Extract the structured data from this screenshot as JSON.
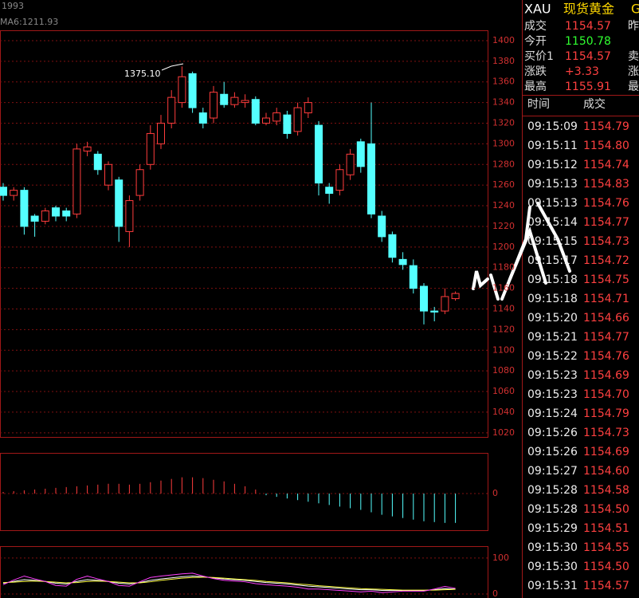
{
  "chart_data": [
    {
      "type": "candlestick",
      "title": "1993",
      "subtitle": "MA6:1211.93",
      "annotation": "1375.10",
      "open": [
        1258,
        1250,
        1255,
        1230,
        1225,
        1238,
        1235,
        1232,
        1293,
        1290,
        1260,
        1265,
        1215,
        1250,
        1280,
        1300,
        1320,
        1340,
        1368,
        1330,
        1325,
        1348,
        1338,
        1340,
        1343,
        1320,
        1322,
        1328,
        1312,
        1330,
        1318,
        1258,
        1255,
        1270,
        1302,
        1300,
        1230,
        1212,
        1188,
        1182,
        1162,
        1138,
        1138,
        1150
      ],
      "close": [
        1250,
        1255,
        1220,
        1225,
        1235,
        1230,
        1230,
        1295,
        1297,
        1275,
        1280,
        1220,
        1245,
        1275,
        1310,
        1320,
        1345,
        1365,
        1335,
        1320,
        1350,
        1338,
        1345,
        1342,
        1320,
        1325,
        1330,
        1310,
        1335,
        1340,
        1262,
        1252,
        1275,
        1290,
        1278,
        1232,
        1210,
        1190,
        1183,
        1160,
        1138,
        1137,
        1152,
        1155
      ],
      "high": [
        1262,
        1258,
        1258,
        1232,
        1238,
        1240,
        1238,
        1300,
        1302,
        1293,
        1283,
        1268,
        1250,
        1280,
        1318,
        1328,
        1352,
        1375,
        1370,
        1335,
        1356,
        1360,
        1350,
        1348,
        1346,
        1330,
        1335,
        1332,
        1340,
        1345,
        1322,
        1262,
        1280,
        1295,
        1305,
        1340,
        1235,
        1215,
        1195,
        1188,
        1165,
        1142,
        1160,
        1157
      ],
      "low": [
        1245,
        1245,
        1212,
        1210,
        1222,
        1225,
        1225,
        1228,
        1288,
        1270,
        1255,
        1205,
        1200,
        1245,
        1275,
        1295,
        1315,
        1335,
        1330,
        1315,
        1320,
        1335,
        1335,
        1335,
        1318,
        1318,
        1318,
        1305,
        1308,
        1325,
        1250,
        1242,
        1250,
        1265,
        1272,
        1228,
        1205,
        1185,
        1178,
        1155,
        1125,
        1128,
        1135,
        1148
      ],
      "up_color": "#ff3c3c",
      "down_color": "#54ffff",
      "ylim": [
        1016,
        1410
      ],
      "yticks": [
        1020,
        1040,
        1060,
        1080,
        1100,
        1120,
        1140,
        1160,
        1180,
        1200,
        1220,
        1240,
        1260,
        1280,
        1300,
        1320,
        1340,
        1360,
        1380,
        1400
      ],
      "grid": true
    },
    {
      "type": "histogram_bars",
      "values": [
        2,
        3,
        4,
        5,
        6,
        7,
        8,
        9,
        10,
        11,
        12,
        12,
        11,
        12,
        14,
        16,
        18,
        20,
        20,
        19,
        17,
        15,
        12,
        9,
        5,
        -2,
        -4,
        -6,
        -8,
        -10,
        -12,
        -14,
        -16,
        -18,
        -20,
        -23,
        -26,
        -28,
        -30,
        -32,
        -34,
        -35,
        -36,
        -36
      ],
      "up_color": "#ff3c3c",
      "down_color": "#54ffff",
      "ylim": [
        -45,
        50
      ],
      "yticks": [
        0
      ]
    },
    {
      "type": "line",
      "series": [
        {
          "color": "#ffffff",
          "values": [
            30,
            35,
            40,
            38,
            35,
            30,
            28,
            35,
            40,
            38,
            35,
            30,
            28,
            32,
            38,
            42,
            45,
            48,
            50,
            48,
            45,
            42,
            40,
            38,
            35,
            32,
            30,
            28,
            25,
            22,
            20,
            18,
            16,
            14,
            12,
            12,
            10,
            10,
            10,
            10,
            10,
            12,
            15,
            14
          ]
        },
        {
          "color": "#ffff40",
          "values": [
            32,
            33,
            35,
            36,
            35,
            33,
            31,
            32,
            35,
            36,
            35,
            33,
            31,
            31,
            34,
            38,
            41,
            44,
            46,
            47,
            46,
            44,
            42,
            40,
            38,
            35,
            33,
            31,
            28,
            26,
            23,
            21,
            19,
            17,
            15,
            14,
            13,
            12,
            11,
            11,
            11,
            11,
            12,
            13
          ]
        },
        {
          "color": "#ff40ff",
          "values": [
            26,
            39,
            50,
            42,
            35,
            24,
            22,
            41,
            50,
            42,
            35,
            24,
            22,
            34,
            46,
            50,
            53,
            56,
            58,
            50,
            43,
            38,
            36,
            34,
            29,
            26,
            24,
            22,
            19,
            14,
            14,
            12,
            10,
            8,
            6,
            8,
            4,
            6,
            8,
            8,
            8,
            14,
            21,
            16
          ]
        }
      ],
      "ylim": [
        -11,
        133
      ],
      "yticks": [
        100,
        0
      ]
    }
  ],
  "quote": {
    "symbol": "XAU",
    "name": "现货黄金",
    "extra": "G",
    "fields": [
      {
        "label": "成交",
        "value": "1154.57",
        "side": "昨"
      },
      {
        "label": "今开",
        "value": "1150.78",
        "side": ""
      },
      {
        "label": "买价1",
        "value": "1154.57",
        "side": "卖"
      },
      {
        "label": "涨跌",
        "value": "+3.33",
        "side": "涨"
      },
      {
        "label": "最高",
        "value": "1155.91",
        "side": "最"
      }
    ]
  },
  "ticks": {
    "header": [
      "时间",
      "成交"
    ],
    "rows": [
      [
        "09:15:09",
        "1154.79"
      ],
      [
        "09:15:11",
        "1154.80"
      ],
      [
        "09:15:12",
        "1154.74"
      ],
      [
        "09:15:13",
        "1154.83"
      ],
      [
        "09:15:13",
        "1154.76"
      ],
      [
        "09:15:14",
        "1154.77"
      ],
      [
        "09:15:15",
        "1154.73"
      ],
      [
        "09:15:17",
        "1154.72"
      ],
      [
        "09:15:18",
        "1154.75"
      ],
      [
        "09:15:18",
        "1154.71"
      ],
      [
        "09:15:20",
        "1154.66"
      ],
      [
        "09:15:21",
        "1154.77"
      ],
      [
        "09:15:22",
        "1154.76"
      ],
      [
        "09:15:23",
        "1154.69"
      ],
      [
        "09:15:23",
        "1154.70"
      ],
      [
        "09:15:24",
        "1154.79"
      ],
      [
        "09:15:26",
        "1154.73"
      ],
      [
        "09:15:26",
        "1154.69"
      ],
      [
        "09:15:27",
        "1154.60"
      ],
      [
        "09:15:28",
        "1154.58"
      ],
      [
        "09:15:28",
        "1154.50"
      ],
      [
        "09:15:29",
        "1154.51"
      ],
      [
        "09:15:30",
        "1154.55"
      ],
      [
        "09:15:30",
        "1154.50"
      ],
      [
        "09:15:31",
        "1154.57"
      ]
    ]
  }
}
